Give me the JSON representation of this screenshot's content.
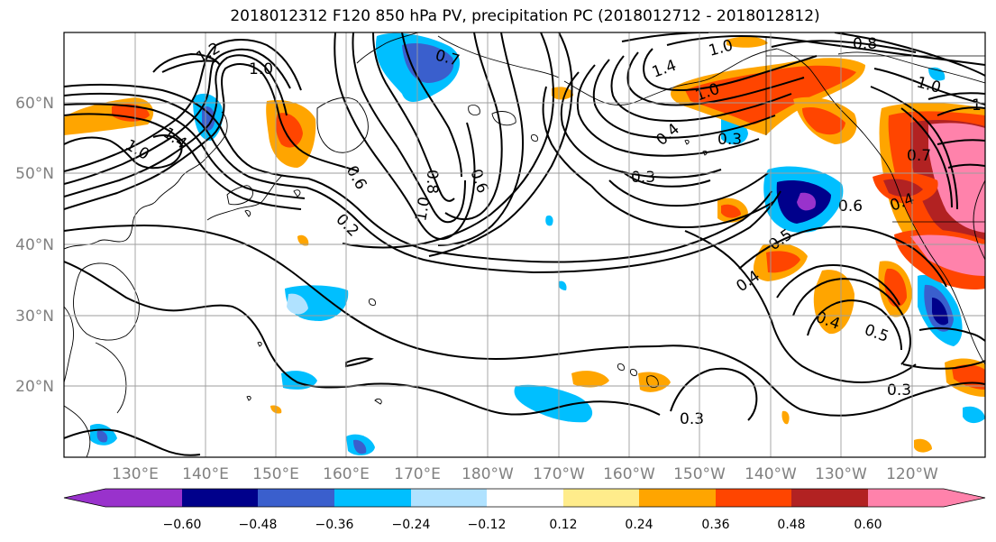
{
  "title": "2018012312 F120 850 hPa PV, precipitation PC (2018012712 - 2018012812)",
  "lat_labels": [
    "60°N",
    "50°N",
    "40°N",
    "30°N",
    "20°N"
  ],
  "lon_labels": [
    "130°E",
    "140°E",
    "150°E",
    "160°E",
    "170°E",
    "180°W",
    "170°W",
    "160°W",
    "150°W",
    "140°W",
    "130°W",
    "120°W"
  ],
  "contour_labels": [
    "1.2",
    "1.0",
    "1.4",
    "1.0",
    "0.7",
    "1.0",
    "1.4",
    "1.0",
    "0.8",
    "1.0",
    "0.4",
    "0.3",
    "0.3",
    "0.8",
    "1.0",
    "0.6",
    "0.2",
    "0.6",
    "0.4",
    "0.5",
    "0.4",
    "0.6",
    "0.5",
    "0.3",
    "0.3",
    "0.7",
    "1",
    "0.4"
  ],
  "colorbar": {
    "tick_labels": [
      "−0.60",
      "−0.48",
      "−0.36",
      "−0.24",
      "−0.12",
      "0.12",
      "0.24",
      "0.36",
      "0.48",
      "0.60"
    ],
    "colors": [
      "#9932cc",
      "#00008b",
      "#3a5fcd",
      "#00bfff",
      "#b0e2ff",
      "#ffffff",
      "#ffec8b",
      "#ffa500",
      "#ff4500",
      "#b22222",
      "#ff82ab"
    ]
  }
}
